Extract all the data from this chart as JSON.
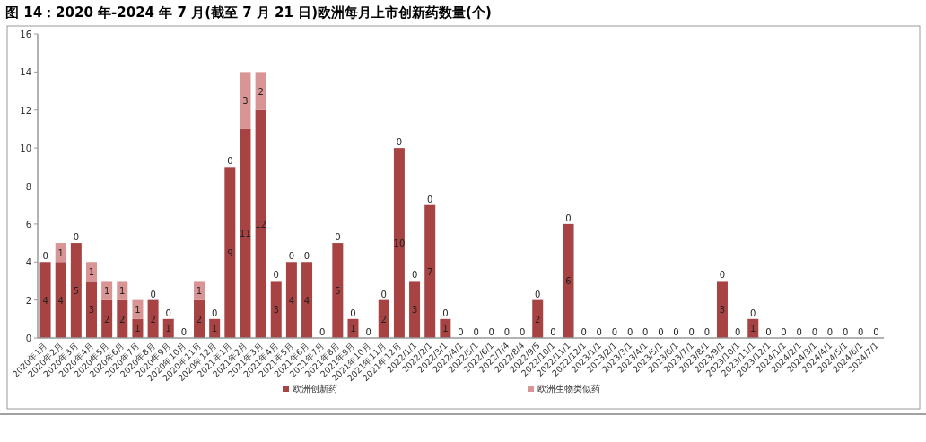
{
  "chart_data": {
    "type": "bar",
    "stacked": true,
    "title": "图 14：2020 年-2024 年 7 月(截至 7 月 21 日)欧洲每月上市创新药数量(个)",
    "categories": [
      "2020年1月",
      "2020年2月",
      "2020年3月",
      "2020年4月",
      "2020年5月",
      "2020年6月",
      "2020年7月",
      "2020年8月",
      "2020年9月",
      "2020年10月",
      "2020年11月",
      "2020年12月",
      "2021年1月",
      "2021年2月",
      "2021年3月",
      "2021年4月",
      "2021年5月",
      "2021年6月",
      "2021年7月",
      "2021年8月",
      "2021年9月",
      "2021年10月",
      "2021年11月",
      "2021年12月",
      "2022/1/1",
      "2022/2/1",
      "2022/3/1",
      "2022/4/1",
      "2022/5/1",
      "2022/6/1",
      "2022/7/4",
      "2022/8/4",
      "2022/9/5",
      "2022/10/1",
      "2022/11/1",
      "2022/12/1",
      "2023/1/1",
      "2023/2/1",
      "2023/3/1",
      "2023/4/1",
      "2023/5/1",
      "2023/6/1",
      "2023/7/1",
      "2023/8/1",
      "2023/9/1",
      "2023/10/1",
      "2023/11/1",
      "2023/12/1",
      "2024/1/1",
      "2024/2/1",
      "2024/3/1",
      "2024/4/1",
      "2024/5/1",
      "2024/6/1",
      "2024/7/1"
    ],
    "series": [
      {
        "name": "欧洲创新药",
        "color": "#a84343",
        "values": [
          4,
          4,
          5,
          3,
          2,
          2,
          1,
          2,
          1,
          0,
          2,
          1,
          9,
          11,
          12,
          3,
          4,
          4,
          0,
          5,
          1,
          0,
          2,
          10,
          3,
          7,
          1,
          0,
          0,
          0,
          0,
          0,
          2,
          0,
          6,
          0,
          0,
          0,
          0,
          0,
          0,
          0,
          0,
          0,
          3,
          0,
          1,
          0,
          0,
          0,
          0,
          0,
          0,
          0,
          0
        ],
        "value_labels": [
          "4",
          "4",
          "5",
          "3",
          "2",
          "2",
          "1",
          "2",
          "1",
          null,
          "2",
          "1",
          "9",
          "11",
          "12",
          "3",
          "4",
          "4",
          null,
          "5",
          "1",
          null,
          "2",
          "10",
          "3",
          "7",
          "1",
          null,
          null,
          null,
          null,
          null,
          "2",
          null,
          "6",
          null,
          null,
          null,
          null,
          null,
          null,
          null,
          null,
          null,
          "3",
          null,
          "1",
          null,
          null,
          null,
          null,
          null,
          null,
          null,
          null
        ]
      },
      {
        "name": "欧洲生物类似药",
        "color": "#d99494",
        "values": [
          0,
          1,
          0,
          1,
          1,
          1,
          1,
          0,
          0,
          0,
          1,
          0,
          0,
          3,
          2,
          0,
          0,
          0,
          0,
          0,
          0,
          0,
          0,
          0,
          0,
          0,
          0,
          0,
          0,
          0,
          0,
          0,
          0,
          0,
          0,
          0,
          0,
          0,
          0,
          0,
          0,
          0,
          0,
          0,
          0,
          0,
          0,
          0,
          0,
          0,
          0,
          0,
          0,
          0,
          0
        ],
        "value_labels": [
          "0",
          "1",
          "0",
          "1",
          "1",
          "1",
          "1",
          "0",
          "0",
          "0",
          "1",
          "0",
          "0",
          "3",
          "2",
          "0",
          "0",
          "0",
          "0",
          "0",
          "0",
          "0",
          "0",
          "0",
          "0",
          "0",
          "0",
          "0",
          "0",
          "0",
          "0",
          "0",
          "0",
          "0",
          "0",
          "0",
          "0",
          "0",
          "0",
          "0",
          "0",
          "0",
          "0",
          "0",
          "0",
          "0",
          "0",
          "0",
          "0",
          "0",
          "0",
          "0",
          "0",
          "0",
          "0"
        ]
      }
    ],
    "ylim": [
      0,
      16
    ],
    "yticks": [
      0,
      2,
      4,
      6,
      8,
      10,
      12,
      14,
      16
    ],
    "grid": false,
    "legend": "bottom"
  }
}
